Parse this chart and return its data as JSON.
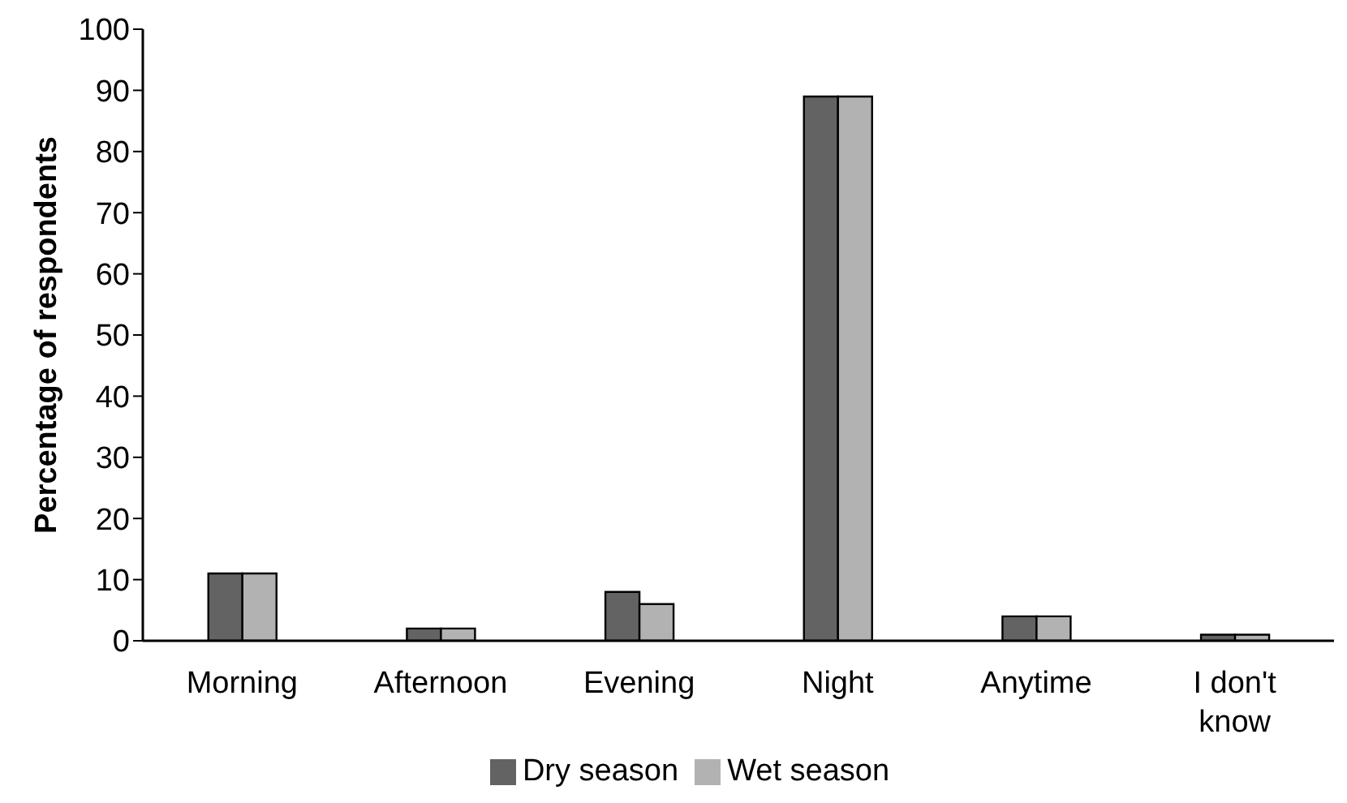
{
  "chart_data": {
    "type": "bar",
    "ylabel": "Percentage of respondents",
    "categories": [
      "Morning",
      "Afternoon",
      "Evening",
      "Night",
      "Anytime",
      "I don't know"
    ],
    "series": [
      {
        "name": "Dry season",
        "color": "#636363",
        "values": [
          11,
          2,
          8,
          89,
          4,
          1
        ]
      },
      {
        "name": "Wet season",
        "color": "#b2b2b2",
        "values": [
          11,
          2,
          6,
          89,
          4,
          1
        ]
      }
    ],
    "ylim": [
      0,
      100
    ],
    "yticks": [
      0,
      10,
      20,
      30,
      40,
      50,
      60,
      70,
      80,
      90,
      100
    ],
    "grid": false,
    "legend": "bottom"
  }
}
